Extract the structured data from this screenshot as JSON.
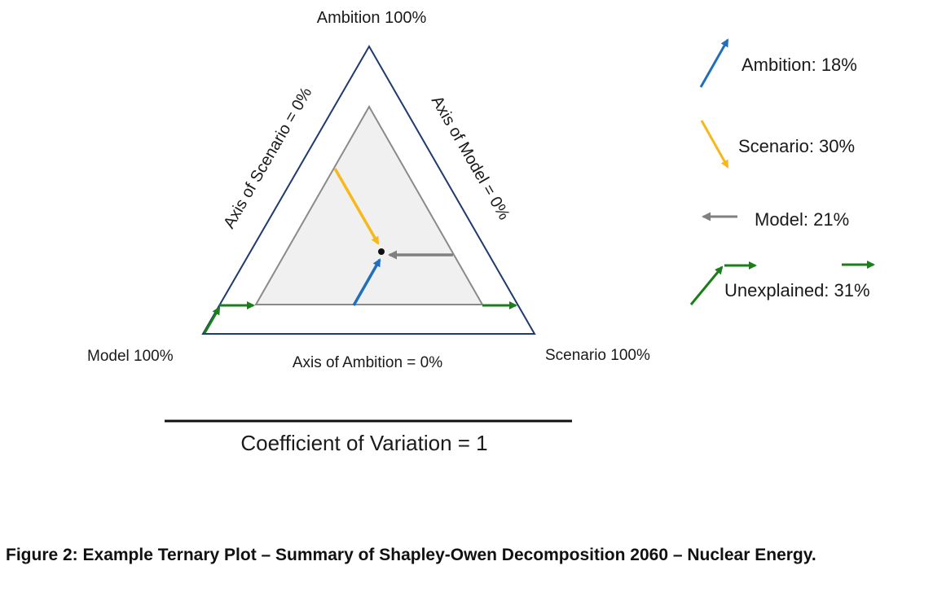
{
  "corners": {
    "top": "Ambition 100%",
    "left": "Model 100%",
    "right": "Scenario 100%"
  },
  "axes": {
    "left_edge": "Axis of Scenario = 0%",
    "right_edge": "Axis of Model = 0%",
    "bottom_edge": "Axis of Ambition = 0%"
  },
  "legend": [
    {
      "label": "Ambition: 18%",
      "color": "#1f6fbe",
      "icon": "arrow-up-right-icon"
    },
    {
      "label": "Scenario: 30%",
      "color": "#f6b81a",
      "icon": "arrow-down-right-icon"
    },
    {
      "label": "Model: 21%",
      "color": "#808080",
      "icon": "arrow-left-icon"
    },
    {
      "label": "Unexplained: 31%",
      "color": "#1a7f1a",
      "icon": "green-arrows-icon"
    }
  ],
  "subtitle": "Coefficient of Variation = 1",
  "caption": "Figure 2: Example Ternary Plot – Summary of Shapley-Owen Decomposition 2060 – Nuclear Energy."
}
